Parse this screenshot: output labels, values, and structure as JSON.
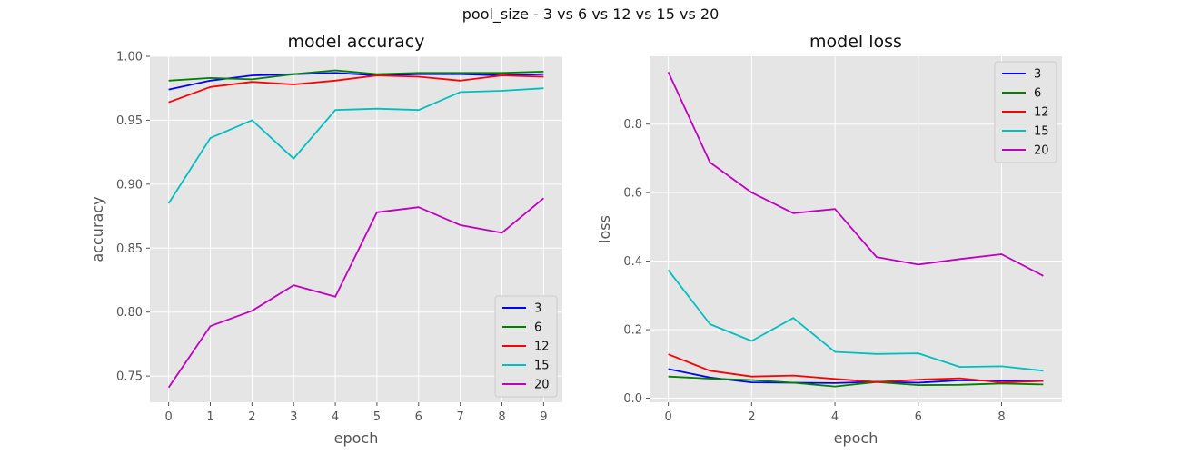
{
  "figure": {
    "title": "pool_size - 3 vs 6 vs 12 vs 15 vs 20"
  },
  "chart_data": [
    {
      "type": "line",
      "title": "model accuracy",
      "xlabel": "epoch",
      "ylabel": "accuracy",
      "x": [
        0,
        1,
        2,
        3,
        4,
        5,
        6,
        7,
        8,
        9
      ],
      "xlim": [
        -0.45,
        9.45
      ],
      "ylim": [
        0.7295,
        1.0
      ],
      "xticks": [
        0,
        1,
        2,
        3,
        4,
        5,
        6,
        7,
        8,
        9
      ],
      "yticks": [
        0.75,
        0.8,
        0.85,
        0.9,
        0.95,
        1.0
      ],
      "ytick_labels": [
        "0.75",
        "0.80",
        "0.85",
        "0.90",
        "0.95",
        "1.00"
      ],
      "grid": true,
      "legend_position": "lower-right",
      "series": [
        {
          "name": "3",
          "color": "#0000ff",
          "values": [
            0.974,
            0.981,
            0.985,
            0.986,
            0.987,
            0.985,
            0.986,
            0.986,
            0.985,
            0.986
          ]
        },
        {
          "name": "6",
          "color": "#008000",
          "values": [
            0.981,
            0.983,
            0.982,
            0.986,
            0.989,
            0.986,
            0.987,
            0.987,
            0.987,
            0.988
          ]
        },
        {
          "name": "12",
          "color": "#ff0000",
          "values": [
            0.964,
            0.976,
            0.98,
            0.978,
            0.981,
            0.985,
            0.984,
            0.981,
            0.985,
            0.984
          ]
        },
        {
          "name": "15",
          "color": "#00bfbf",
          "values": [
            0.885,
            0.936,
            0.95,
            0.92,
            0.958,
            0.959,
            0.958,
            0.972,
            0.973,
            0.975
          ]
        },
        {
          "name": "20",
          "color": "#bf00bf",
          "values": [
            0.741,
            0.789,
            0.801,
            0.821,
            0.812,
            0.878,
            0.882,
            0.868,
            0.862,
            0.889
          ]
        }
      ]
    },
    {
      "type": "line",
      "title": "model loss",
      "xlabel": "epoch",
      "ylabel": "loss",
      "x": [
        0,
        1,
        2,
        3,
        4,
        5,
        6,
        7,
        8,
        9
      ],
      "xlim": [
        -0.45,
        9.45
      ],
      "ylim": [
        -0.012,
        0.998
      ],
      "xticks": [
        0,
        2,
        4,
        6,
        8
      ],
      "yticks": [
        0.0,
        0.2,
        0.4,
        0.6,
        0.8
      ],
      "ytick_labels": [
        "0.0",
        "0.2",
        "0.4",
        "0.6",
        "0.8"
      ],
      "grid": true,
      "legend_position": "upper-right",
      "series": [
        {
          "name": "3",
          "color": "#0000ff",
          "values": [
            0.085,
            0.06,
            0.046,
            0.045,
            0.044,
            0.048,
            0.045,
            0.052,
            0.051,
            0.05
          ]
        },
        {
          "name": "6",
          "color": "#008000",
          "values": [
            0.063,
            0.057,
            0.053,
            0.045,
            0.034,
            0.047,
            0.038,
            0.039,
            0.043,
            0.04
          ]
        },
        {
          "name": "12",
          "color": "#ff0000",
          "values": [
            0.128,
            0.08,
            0.063,
            0.066,
            0.056,
            0.047,
            0.054,
            0.058,
            0.046,
            0.05
          ]
        },
        {
          "name": "15",
          "color": "#00bfbf",
          "values": [
            0.374,
            0.216,
            0.167,
            0.234,
            0.135,
            0.129,
            0.131,
            0.091,
            0.093,
            0.08
          ]
        },
        {
          "name": "20",
          "color": "#bf00bf",
          "values": [
            0.952,
            0.688,
            0.6,
            0.54,
            0.552,
            0.412,
            0.39,
            0.406,
            0.42,
            0.357
          ]
        }
      ]
    }
  ]
}
